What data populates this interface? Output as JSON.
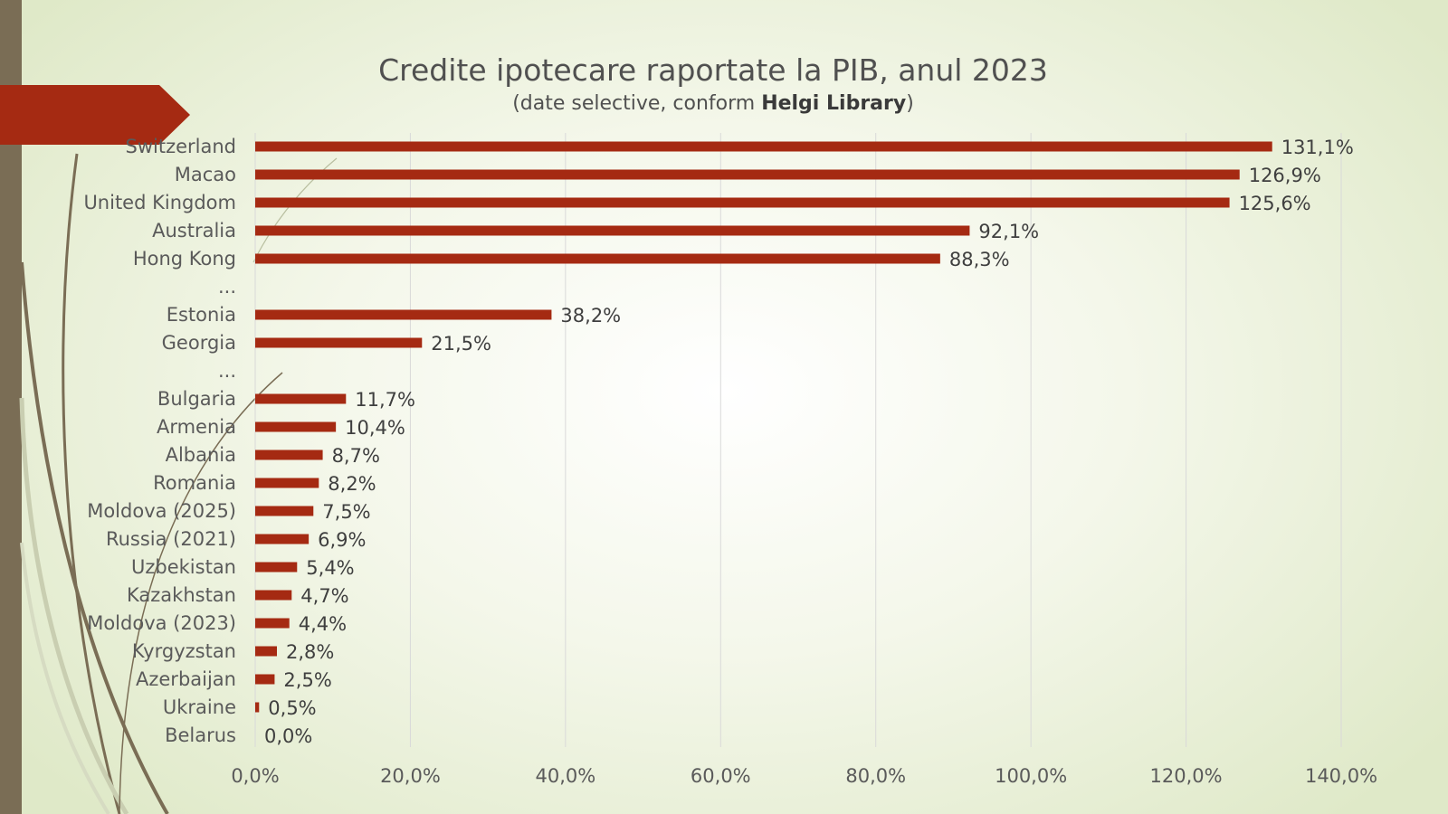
{
  "chart_data": {
    "type": "bar",
    "orientation": "horizontal",
    "title": "Credite ipotecare raportate la PIB, anul 2023",
    "subtitle_prefix": "(date selective, conform ",
    "subtitle_bold": "Helgi Library",
    "subtitle_suffix": ")",
    "categories": [
      "Switzerland",
      "Macao",
      "United Kingdom",
      "Australia",
      "Hong Kong",
      "...",
      "Estonia",
      "Georgia",
      "...",
      "Bulgaria",
      "Armenia",
      "Albania",
      "Romania",
      "Moldova (2025)",
      "Russia (2021)",
      "Uzbekistan",
      "Kazakhstan",
      "Moldova (2023)",
      "Kyrgyzstan",
      "Azerbaijan",
      "Ukraine",
      "Belarus"
    ],
    "values": [
      131.1,
      126.9,
      125.6,
      92.1,
      88.3,
      null,
      38.2,
      21.5,
      null,
      11.7,
      10.4,
      8.7,
      8.2,
      7.5,
      6.9,
      5.4,
      4.7,
      4.4,
      2.8,
      2.5,
      0.5,
      0.0
    ],
    "value_labels": [
      "131,1%",
      "126,9%",
      "125,6%",
      "92,1%",
      "88,3%",
      "",
      "38,2%",
      "21,5%",
      "",
      "11,7%",
      "10,4%",
      "8,7%",
      "8,2%",
      "7,5%",
      "6,9%",
      "5,4%",
      "4,7%",
      "4,4%",
      "2,8%",
      "2,5%",
      "0,5%",
      "0,0%"
    ],
    "xlim": [
      0,
      140
    ],
    "xticks": [
      0,
      20,
      40,
      60,
      80,
      100,
      120,
      140
    ],
    "xtick_labels": [
      "0,0%",
      "20,0%",
      "40,0%",
      "60,0%",
      "80,0%",
      "100,0%",
      "120,0%",
      "140,0%"
    ],
    "grid": true,
    "legend": "none",
    "bar_color": "#a52a12"
  },
  "colors": {
    "accent_band": "#7a6d55",
    "banner": "#a52a12"
  }
}
